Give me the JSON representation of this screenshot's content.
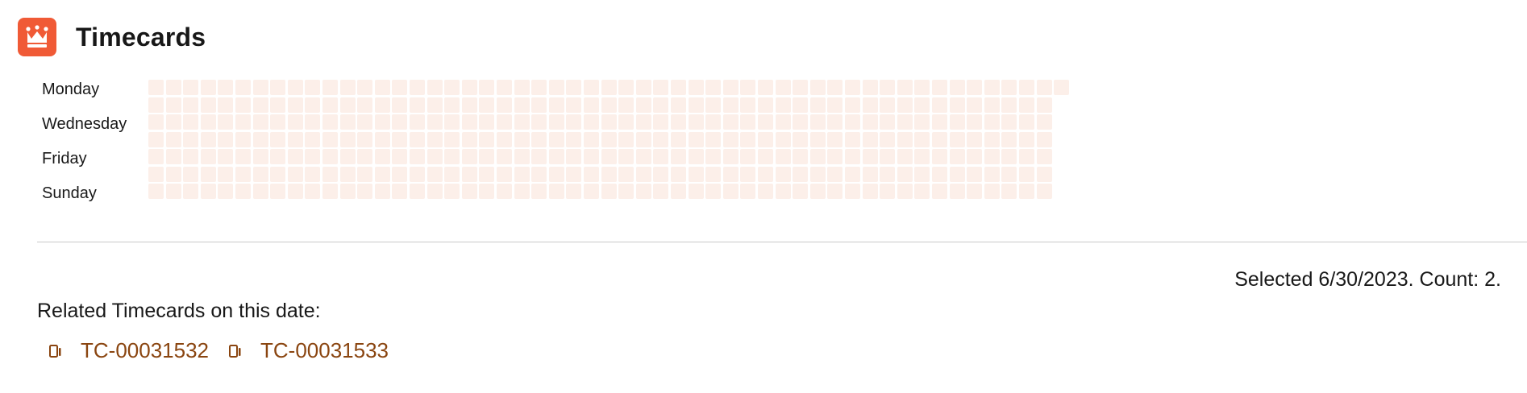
{
  "app": {
    "title": "Timecards",
    "icon": "crown-icon",
    "brand_color": "#f05a36"
  },
  "heatmap": {
    "day_labels": [
      "Monday",
      "Wednesday",
      "Friday",
      "Sunday"
    ],
    "weeks": 53,
    "empty_color": "#fcefe9",
    "active_color": "#7a3712",
    "selected_cell": {
      "week": 52,
      "day": "Friday",
      "count": 2
    }
  },
  "selection": {
    "text": "Selected 6/30/2023. Count: 2."
  },
  "related": {
    "label": "Related Timecards on this date:",
    "icon": "timecard-icon",
    "items": [
      {
        "label": "TC-00031532"
      },
      {
        "label": "TC-00031533"
      }
    ]
  }
}
